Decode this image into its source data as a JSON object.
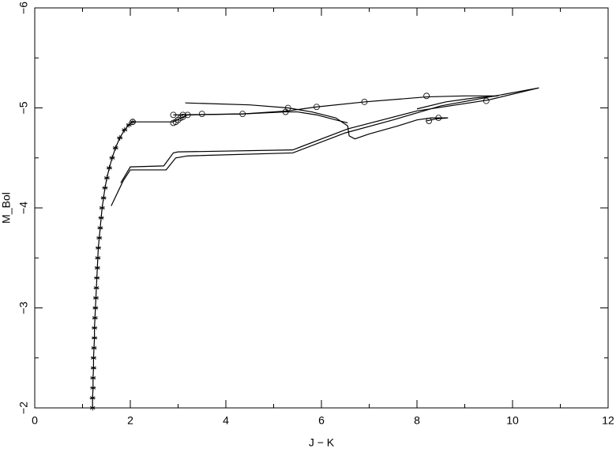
{
  "chart_data": {
    "type": "line",
    "xlabel": "J − K",
    "ylabel": "M_Bol",
    "xlim": [
      0,
      12
    ],
    "ylim": [
      -2,
      -6
    ],
    "xticks": [
      0,
      2,
      4,
      6,
      8,
      10,
      12
    ],
    "yticks": [
      {
        "value": -2,
        "label": "−2"
      },
      {
        "value": -3,
        "label": "−3"
      },
      {
        "value": -4,
        "label": "−4"
      },
      {
        "value": -5,
        "label": "−5"
      },
      {
        "value": -6,
        "label": "−6"
      }
    ],
    "xminorticks": [
      1,
      3,
      5,
      7,
      9,
      11
    ],
    "yminorticks": [
      -2.5,
      -3.5,
      -4.5,
      -5.5
    ],
    "series": [
      {
        "color": "#000000",
        "marker": "star",
        "line": true,
        "x": [
          1.21,
          1.21,
          1.22,
          1.22,
          1.23,
          1.23,
          1.24,
          1.25,
          1.25,
          1.26,
          1.27,
          1.28,
          1.29,
          1.3,
          1.31,
          1.32,
          1.33,
          1.35,
          1.37,
          1.39,
          1.41,
          1.44,
          1.47,
          1.51,
          1.56,
          1.62,
          1.69,
          1.78,
          1.88,
          1.97,
          2.05
        ],
        "values": [
          -2.0,
          -2.1,
          -2.2,
          -2.3,
          -2.4,
          -2.5,
          -2.6,
          -2.7,
          -2.8,
          -2.9,
          -3.0,
          -3.1,
          -3.2,
          -3.3,
          -3.4,
          -3.5,
          -3.6,
          -3.7,
          -3.8,
          -3.9,
          -4.0,
          -4.1,
          -4.2,
          -4.3,
          -4.4,
          -4.5,
          -4.6,
          -4.7,
          -4.78,
          -4.83,
          -4.86
        ]
      },
      {
        "color": "#000000",
        "marker": "none",
        "line": true,
        "x": [
          2.05,
          2.9,
          3.2,
          4.35,
          5.25,
          5.5,
          5.9,
          6.3,
          6.55
        ],
        "values": [
          -4.86,
          -4.86,
          -4.93,
          -4.94,
          -4.96,
          -4.96,
          -4.93,
          -4.88,
          -4.85
        ]
      },
      {
        "color": "#000000",
        "marker": "none",
        "line": true,
        "x": [
          3.15,
          4.5,
          5.3,
          5.8,
          6.3,
          6.55,
          6.58,
          6.7,
          7.0,
          7.6,
          8.0,
          8.3,
          8.65,
          8.4,
          8.2
        ],
        "values": [
          -5.05,
          -5.03,
          -5.0,
          -4.96,
          -4.9,
          -4.82,
          -4.72,
          -4.69,
          -4.74,
          -4.82,
          -4.88,
          -4.9,
          -4.9,
          -4.89,
          -4.87
        ]
      },
      {
        "color": "#000000",
        "marker": "none",
        "line": true,
        "x": [
          2.9,
          4.35,
          5.3,
          5.9,
          6.9,
          8.2,
          9.0,
          9.7,
          9.2,
          8.6,
          8.0
        ],
        "values": [
          -4.93,
          -4.94,
          -4.97,
          -5.01,
          -5.06,
          -5.11,
          -5.12,
          -5.12,
          -5.1,
          -5.06,
          -4.99
        ]
      },
      {
        "color": "#000000",
        "marker": "none",
        "line": true,
        "x": [
          1.6,
          1.85,
          2.0,
          2.75,
          2.95,
          3.2,
          5.4,
          6.5,
          7.5,
          8.5,
          10.55
        ],
        "values": [
          -4.02,
          -4.27,
          -4.38,
          -4.38,
          -4.5,
          -4.52,
          -4.55,
          -4.75,
          -4.88,
          -5.02,
          -5.2
        ]
      },
      {
        "color": "#000000",
        "marker": "none",
        "line": true,
        "x": [
          1.8,
          2.0,
          2.7,
          2.9,
          3.0,
          5.4,
          6.55,
          8.0,
          9.5,
          10.55
        ],
        "values": [
          -4.25,
          -4.41,
          -4.42,
          -4.55,
          -4.56,
          -4.58,
          -4.79,
          -4.97,
          -5.08,
          -5.2
        ]
      },
      {
        "color": "#000000",
        "marker": "circle",
        "line": false,
        "x": [
          2.05,
          2.9,
          2.95,
          3.0,
          3.05,
          3.1,
          2.9,
          3.1,
          3.2,
          3.5,
          4.35,
          5.25,
          5.3,
          5.9,
          6.9,
          8.2,
          9.45,
          8.25,
          8.45
        ],
        "values": [
          -4.86,
          -4.85,
          -4.86,
          -4.88,
          -4.9,
          -4.91,
          -4.93,
          -4.93,
          -4.93,
          -4.94,
          -4.94,
          -4.96,
          -5.0,
          -5.01,
          -5.06,
          -5.12,
          -5.07,
          -4.87,
          -4.9
        ]
      }
    ]
  }
}
